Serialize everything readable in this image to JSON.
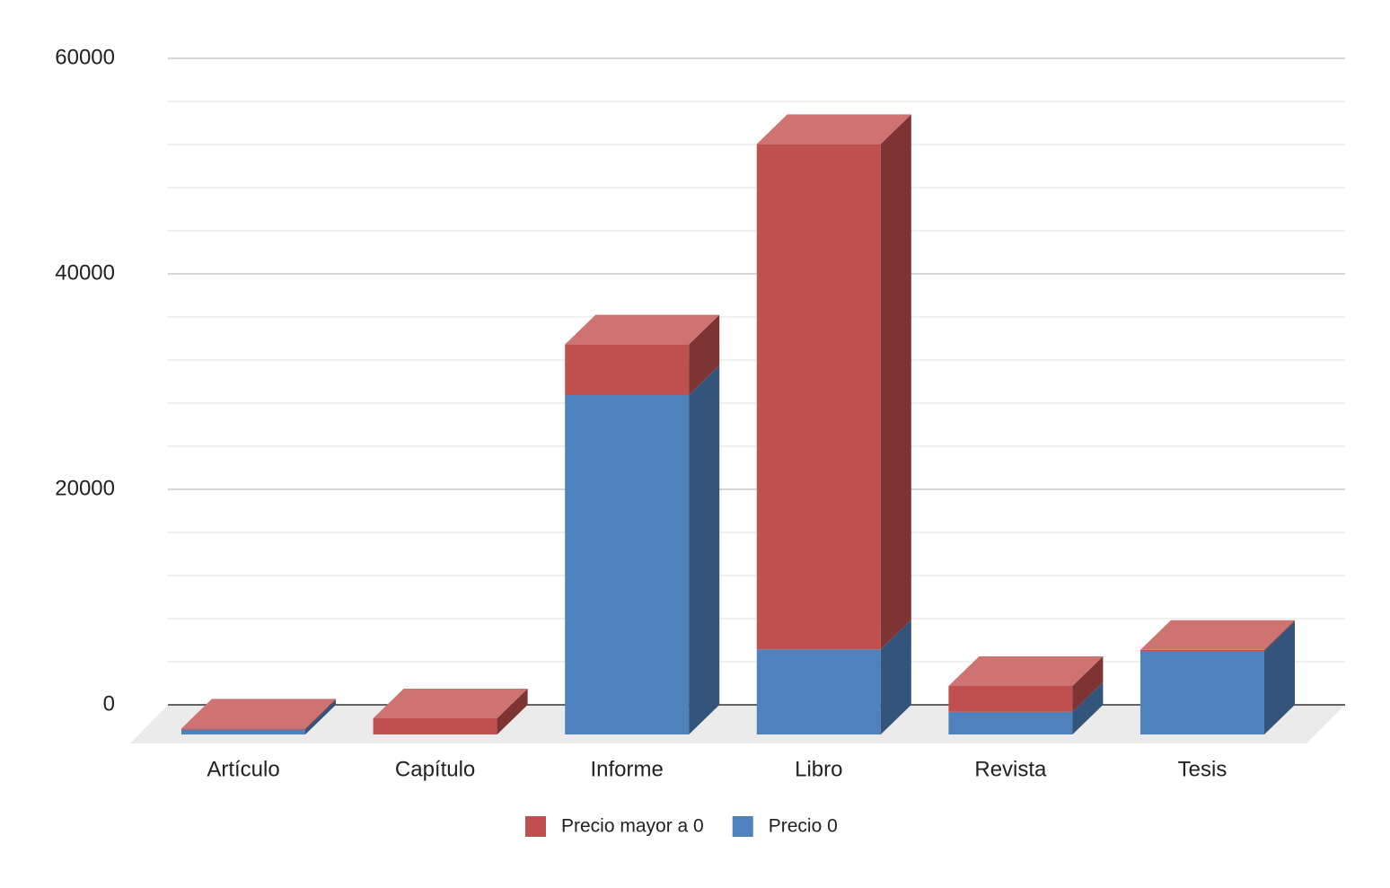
{
  "chart_data": {
    "type": "bar3d_stacked",
    "categories": [
      "Artículo",
      "Capítulo",
      "Informe",
      "Libro",
      "Revista",
      "Tesis"
    ],
    "series": [
      {
        "name": "Precio mayor a 0",
        "color": "#c0504d",
        "values": [
          100,
          1500,
          4700,
          46900,
          2400,
          100
        ]
      },
      {
        "name": "Precio 0",
        "color": "#4f81bd",
        "values": [
          450,
          0,
          31500,
          7900,
          2100,
          7750
        ]
      }
    ],
    "ylim": [
      0,
      60000
    ],
    "yticks": [
      0,
      20000,
      40000,
      60000
    ],
    "grid": true,
    "legend": "bottom"
  }
}
